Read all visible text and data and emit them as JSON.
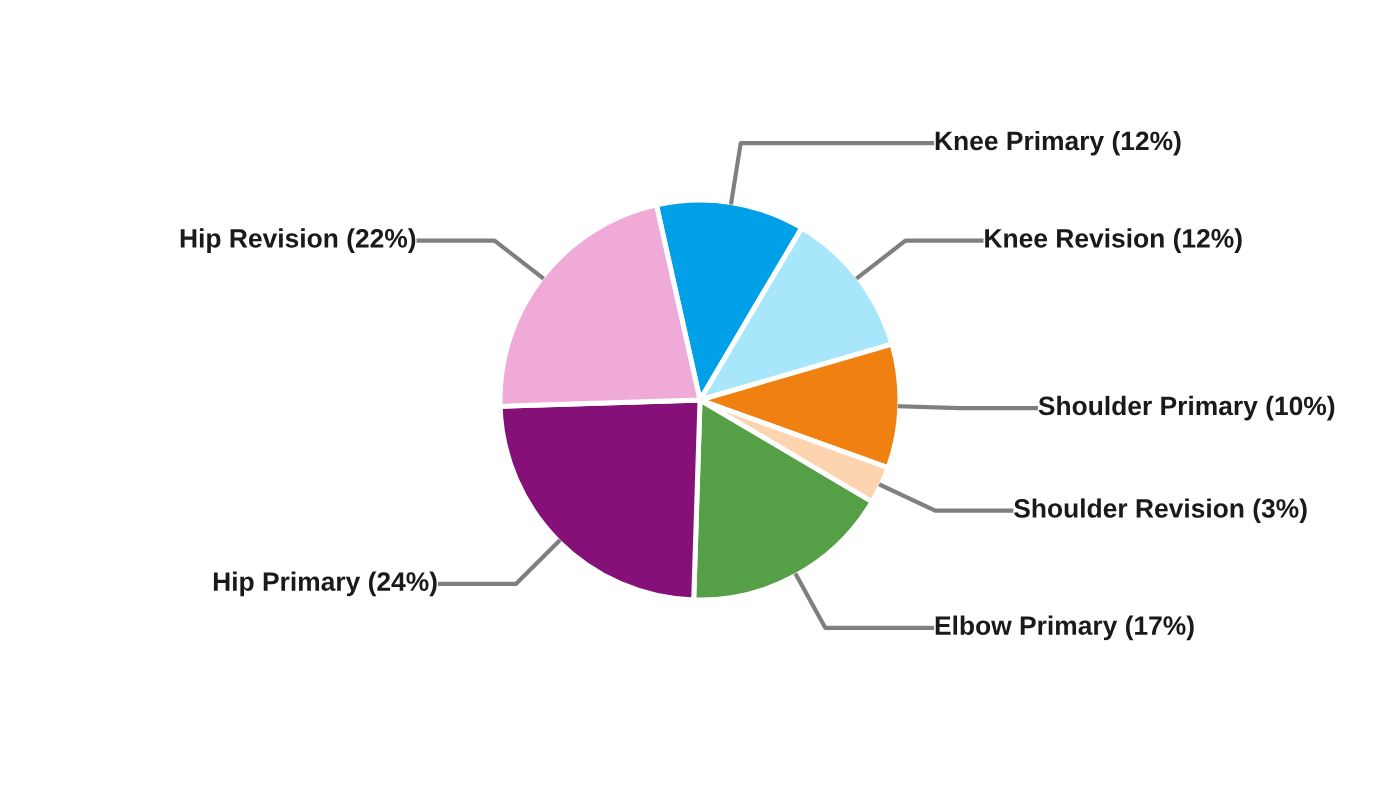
{
  "chart_data": {
    "type": "pie",
    "categories": [
      "Knee Primary",
      "Knee Revision",
      "Shoulder Primary",
      "Shoulder Revision",
      "Elbow Primary",
      "Hip Primary",
      "Hip Revision"
    ],
    "values": [
      12,
      12,
      10,
      3,
      17,
      24,
      22
    ],
    "value_labels": [
      "(12%)",
      "(12%)",
      "(10%)",
      "(3%)",
      "(17%)",
      "(24%)",
      "(22%)"
    ],
    "colors": [
      "#00a0e9",
      "#a8e6fb",
      "#f08010",
      "#fcd5b0",
      "#55a046",
      "#851078",
      "#f0aad8"
    ]
  }
}
